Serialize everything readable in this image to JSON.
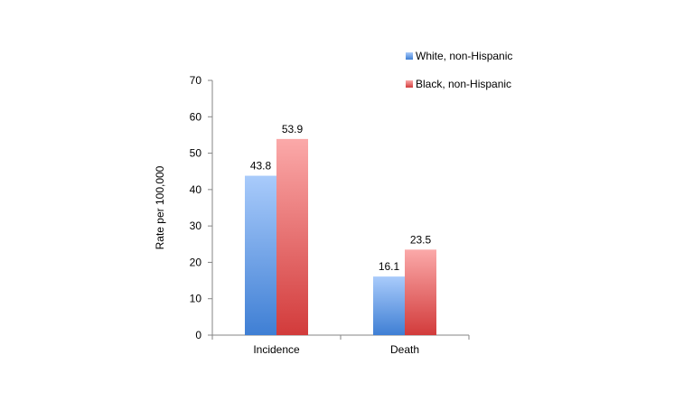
{
  "chart_data": {
    "type": "bar",
    "categories": [
      "Incidence",
      "Death"
    ],
    "series": [
      {
        "name": "White, non-Hispanic",
        "values": [
          43.8,
          16.1
        ],
        "color_top": "#a9cbfb",
        "color_bottom": "#3f7fd4"
      },
      {
        "name": "Black, non-Hispanic",
        "values": [
          53.9,
          23.5
        ],
        "color_top": "#fba9a9",
        "color_bottom": "#d23b3b"
      }
    ],
    "data_labels": [
      [
        "43.8",
        "16.1"
      ],
      [
        "53.9",
        "23.5"
      ]
    ],
    "ylabel": "Rate per 100,000",
    "ylim": [
      0,
      70
    ],
    "yticks": [
      0,
      10,
      20,
      30,
      40,
      50,
      60,
      70
    ],
    "grid": false,
    "legend_position": "top-right"
  }
}
